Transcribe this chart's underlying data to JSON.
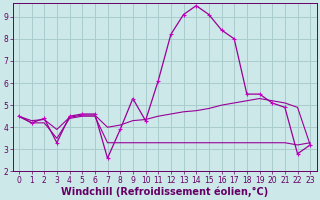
{
  "background_color": "#cce8e8",
  "grid_color": "#aacccc",
  "line_color": "#990099",
  "marker_color": "#cc00cc",
  "xlabel": "Windchill (Refroidissement éolien,°C)",
  "xlim": [
    -0.5,
    23.5
  ],
  "ylim": [
    2,
    9.6
  ],
  "yticks": [
    2,
    3,
    4,
    5,
    6,
    7,
    8,
    9
  ],
  "xticks": [
    0,
    1,
    2,
    3,
    4,
    5,
    6,
    7,
    8,
    9,
    10,
    11,
    12,
    13,
    14,
    15,
    16,
    17,
    18,
    19,
    20,
    21,
    22,
    23
  ],
  "series_main": {
    "x": [
      0,
      1,
      2,
      3,
      4,
      5,
      6,
      7,
      8,
      9,
      10,
      11,
      12,
      13,
      14,
      15,
      16,
      17,
      18,
      19,
      20,
      21,
      22,
      23
    ],
    "y": [
      4.5,
      4.2,
      4.4,
      3.3,
      4.5,
      4.6,
      4.6,
      2.6,
      3.9,
      5.3,
      4.3,
      6.1,
      8.2,
      9.1,
      9.5,
      9.1,
      8.4,
      8.0,
      5.5,
      5.5,
      5.1,
      4.9,
      2.8,
      3.2
    ]
  },
  "series_avg": {
    "x": [
      0,
      1,
      2,
      3,
      4,
      5,
      6,
      7,
      8,
      9,
      10,
      11,
      12,
      13,
      14,
      15,
      16,
      17,
      18,
      19,
      20,
      21,
      22,
      23
    ],
    "y": [
      4.5,
      4.3,
      4.35,
      3.9,
      4.45,
      4.55,
      4.55,
      4.0,
      4.1,
      4.3,
      4.35,
      4.5,
      4.6,
      4.7,
      4.75,
      4.85,
      5.0,
      5.1,
      5.2,
      5.3,
      5.2,
      5.1,
      4.9,
      3.2
    ]
  },
  "series_flat": {
    "x": [
      0,
      1,
      2,
      3,
      4,
      5,
      6,
      7,
      8,
      9,
      10,
      11,
      12,
      13,
      14,
      15,
      16,
      17,
      18,
      19,
      20,
      21,
      22,
      23
    ],
    "y": [
      4.5,
      4.2,
      4.2,
      3.5,
      4.4,
      4.5,
      4.5,
      3.3,
      3.3,
      3.3,
      3.3,
      3.3,
      3.3,
      3.3,
      3.3,
      3.3,
      3.3,
      3.3,
      3.3,
      3.3,
      3.3,
      3.3,
      3.2,
      3.3
    ]
  },
  "font_color": "#660066",
  "tick_font_size": 5.5,
  "label_font_size": 7.0
}
